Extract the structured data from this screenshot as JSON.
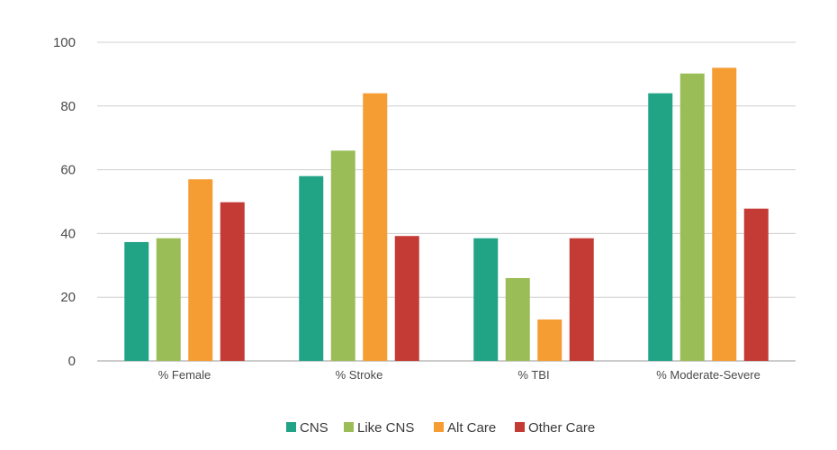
{
  "chart_data": {
    "type": "bar",
    "title": "",
    "xlabel": "",
    "ylabel": "",
    "ylim": [
      0,
      100
    ],
    "yticks": [
      "0",
      "20",
      "40",
      "60",
      "80",
      "100"
    ],
    "grid": true,
    "legend_position": "bottom",
    "categories": [
      "% Female",
      "% Stroke",
      "% TBI",
      "% Moderate-Severe"
    ],
    "series": [
      {
        "name": "CNS",
        "color": "#21a385",
        "values": [
          37.3,
          58,
          38.5,
          84
        ]
      },
      {
        "name": "Like CNS",
        "color": "#9bbd58",
        "values": [
          38.5,
          66,
          26,
          90.2
        ]
      },
      {
        "name": "Alt Care",
        "color": "#f59c33",
        "values": [
          57,
          84,
          13,
          92
        ]
      },
      {
        "name": "Other Care",
        "color": "#c43a34",
        "values": [
          49.8,
          39.2,
          38.5,
          47.8
        ]
      }
    ]
  }
}
